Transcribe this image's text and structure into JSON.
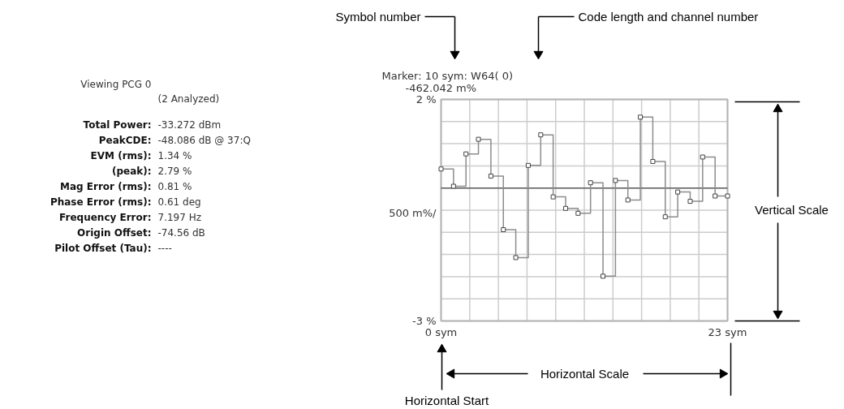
{
  "chart_data": {
    "type": "step",
    "marker": "square",
    "color": "#8c8c8c",
    "grid": true,
    "x": [
      0,
      1,
      2,
      3,
      4,
      5,
      6,
      7,
      8,
      9,
      10,
      11,
      12,
      13,
      14,
      15,
      16,
      17,
      18,
      19,
      20,
      21,
      22,
      23
    ],
    "values": [
      0.43,
      0.04,
      0.77,
      1.1,
      0.27,
      -0.94,
      -1.57,
      0.51,
      1.2,
      -0.2,
      -0.46,
      -0.57,
      0.12,
      -1.99,
      0.17,
      -0.27,
      1.6,
      0.6,
      -0.65,
      -0.09,
      -0.3,
      0.7,
      -0.18,
      -0.18
    ],
    "xlim": [
      0,
      23
    ],
    "ylim": [
      -3,
      2
    ],
    "xticks": [
      {
        "value": 0,
        "label": "0 sym"
      },
      {
        "value": 2.3,
        "label": null
      },
      {
        "value": 4.6,
        "label": null
      },
      {
        "value": 6.9,
        "label": null
      },
      {
        "value": 9.2,
        "label": null
      },
      {
        "value": 11.5,
        "label": null
      },
      {
        "value": 13.8,
        "label": null
      },
      {
        "value": 16.1,
        "label": null
      },
      {
        "value": 18.4,
        "label": null
      },
      {
        "value": 20.7,
        "label": null
      },
      {
        "value": 23,
        "label": "23 sym"
      }
    ],
    "yticks": [
      {
        "value": 2,
        "label": "2 %"
      },
      {
        "value": 1.5,
        "label": null
      },
      {
        "value": 1,
        "label": null
      },
      {
        "value": 0.5,
        "label": null
      },
      {
        "value": 0,
        "label": null
      },
      {
        "value": -0.5,
        "label": null
      },
      {
        "value": -1,
        "label": null
      },
      {
        "value": -1.5,
        "label": null
      },
      {
        "value": -2,
        "label": null
      },
      {
        "value": -2.5,
        "label": null
      },
      {
        "value": -3,
        "label": "-3 %"
      }
    ],
    "ylabel": "500 m%/",
    "ref_lines": [
      {
        "axis": "y",
        "value": 0,
        "color": "#606060"
      }
    ],
    "annotations": [
      "Marker: 10 sym: W64( 0)",
      "-462.042 m%",
      "Viewing PCG 0",
      "(2 Analyzed)",
      "Total Power: -33.272 dBm",
      "PeakCDE: -48.086 dB @ 37:Q",
      "EVM (rms): 1.34 %",
      "(peak): 2.79 %",
      "Mag Error (rms): 0.81 %",
      "Phase Error (rms): 0.61 deg",
      "Frequency Error: 7.197 Hz",
      "Origin Offset: -74.56 dB",
      "Pilot Offset (Tau): ----",
      "Symbol number",
      "Code length and channel number",
      "Vertical Scale",
      "Horizontal Scale",
      "Horizontal Start"
    ]
  }
}
